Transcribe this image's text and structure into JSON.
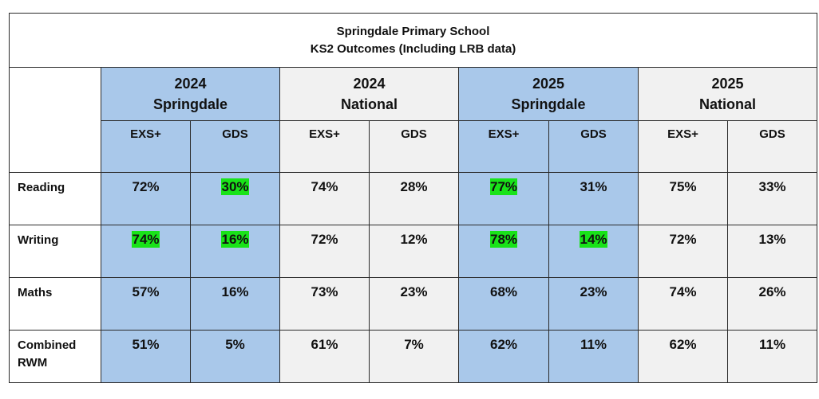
{
  "title": {
    "line1": "Springdale Primary School",
    "line2": "KS2 Outcomes (Including LRB data)"
  },
  "groups": [
    {
      "year": "2024",
      "name": "Springdale",
      "color": "#a9c8ea"
    },
    {
      "year": "2024",
      "name": "National",
      "color": "#f1f1f1"
    },
    {
      "year": "2025",
      "name": "Springdale",
      "color": "#a9c8ea"
    },
    {
      "year": "2025",
      "name": "National",
      "color": "#f1f1f1"
    }
  ],
  "measures": [
    "EXS+",
    "GDS"
  ],
  "highlight_color": "#19e319",
  "rows": [
    {
      "label": "Reading",
      "cells": [
        "72%",
        "30%",
        "74%",
        "28%",
        "77%",
        "31%",
        "75%",
        "33%"
      ],
      "highlighted": [
        false,
        true,
        false,
        false,
        true,
        false,
        false,
        false
      ]
    },
    {
      "label": "Writing",
      "cells": [
        "74%",
        "16%",
        "72%",
        "12%",
        "78%",
        "14%",
        "72%",
        "13%"
      ],
      "highlighted": [
        true,
        true,
        false,
        false,
        true,
        true,
        false,
        false
      ]
    },
    {
      "label": "Maths",
      "cells": [
        "57%",
        "16%",
        "73%",
        "23%",
        "68%",
        "23%",
        "74%",
        "26%"
      ],
      "highlighted": [
        false,
        false,
        false,
        false,
        false,
        false,
        false,
        false
      ]
    },
    {
      "label": "Combined RWM",
      "label_lines": [
        "Combined",
        "RWM"
      ],
      "cells": [
        "51%",
        "5%",
        "61%",
        "7%",
        "62%",
        "11%",
        "62%",
        "11%"
      ],
      "highlighted": [
        false,
        false,
        false,
        false,
        false,
        false,
        false,
        false
      ]
    }
  ]
}
